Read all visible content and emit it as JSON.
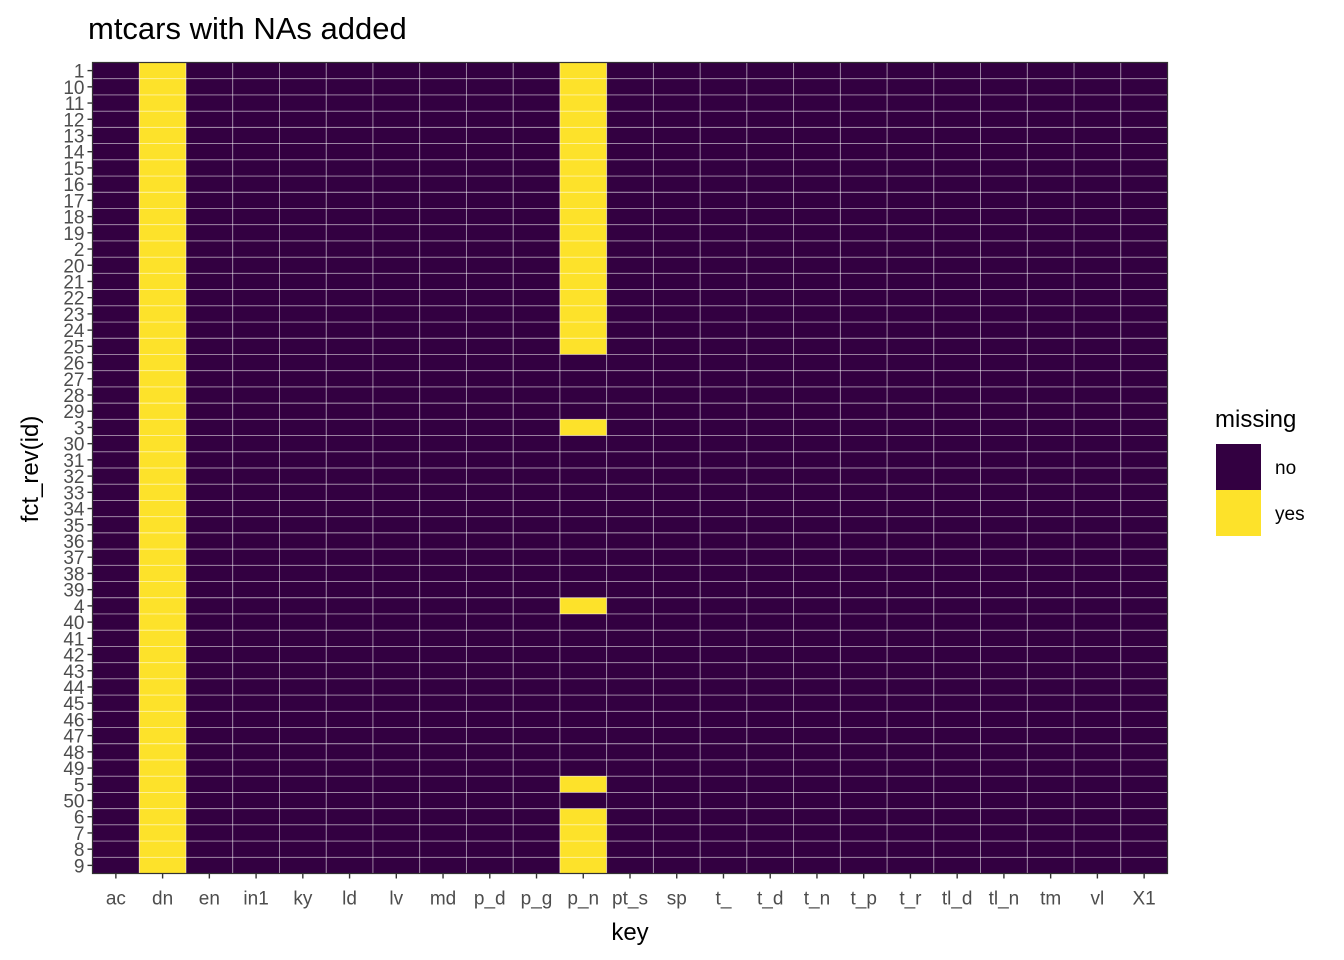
{
  "chart_data": {
    "type": "heatmap",
    "title": "mtcars with NAs added",
    "xlabel": "key",
    "ylabel": "fct_rev(id)",
    "x_categories": [
      "ac",
      "dn",
      "en",
      "in1",
      "ky",
      "ld",
      "lv",
      "md",
      "p_d",
      "p_g",
      "p_n",
      "pt_s",
      "sp",
      "t_",
      "t_d",
      "t_n",
      "t_p",
      "t_r",
      "tl_d",
      "tl_n",
      "tm",
      "vl",
      "X1"
    ],
    "y_categories": [
      "1",
      "10",
      "11",
      "12",
      "13",
      "14",
      "15",
      "16",
      "17",
      "18",
      "19",
      "2",
      "20",
      "21",
      "22",
      "23",
      "24",
      "25",
      "26",
      "27",
      "28",
      "29",
      "3",
      "30",
      "31",
      "32",
      "33",
      "34",
      "35",
      "36",
      "37",
      "38",
      "39",
      "4",
      "40",
      "41",
      "42",
      "43",
      "44",
      "45",
      "46",
      "47",
      "48",
      "49",
      "5",
      "50",
      "6",
      "7",
      "8",
      "9"
    ],
    "fill_variable": "missing",
    "legend": {
      "title": "missing",
      "position": "right",
      "entries": [
        {
          "label": "no",
          "color": "#440154"
        },
        {
          "label": "yes",
          "color": "#FDE725"
        }
      ]
    },
    "missing_yes": {
      "dn": [
        "1",
        "10",
        "11",
        "12",
        "13",
        "14",
        "15",
        "16",
        "17",
        "18",
        "19",
        "2",
        "20",
        "21",
        "22",
        "23",
        "24",
        "25",
        "26",
        "27",
        "28",
        "29",
        "3",
        "30",
        "31",
        "32",
        "33",
        "34",
        "35",
        "36",
        "37",
        "38",
        "39",
        "4",
        "40",
        "41",
        "42",
        "43",
        "44",
        "45",
        "46",
        "47",
        "48",
        "49",
        "5",
        "50",
        "6",
        "7",
        "8",
        "9"
      ],
      "p_n": [
        "1",
        "10",
        "11",
        "12",
        "13",
        "14",
        "15",
        "16",
        "17",
        "18",
        "19",
        "2",
        "20",
        "21",
        "22",
        "23",
        "24",
        "25",
        "3",
        "4",
        "5",
        "6",
        "7",
        "8",
        "9"
      ]
    },
    "colors": {
      "no": "#330041",
      "yes": "#FDE22A",
      "grid": "#ffffff",
      "panel_border": "#333333",
      "tick": "#333333"
    },
    "grid": true
  }
}
